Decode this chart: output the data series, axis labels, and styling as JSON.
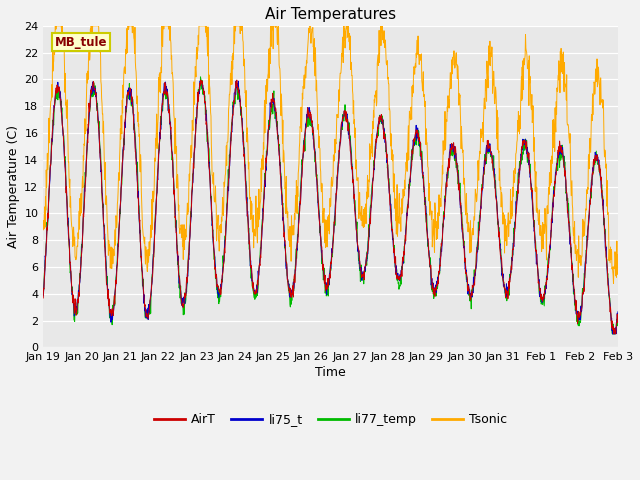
{
  "title": "Air Temperatures",
  "xlabel": "Time",
  "ylabel": "Air Temperature (C)",
  "ylim": [
    0,
    24
  ],
  "yticks": [
    0,
    2,
    4,
    6,
    8,
    10,
    12,
    14,
    16,
    18,
    20,
    22,
    24
  ],
  "xtick_labels": [
    "Jan 19",
    "Jan 20",
    "Jan 21",
    "Jan 22",
    "Jan 23",
    "Jan 24",
    "Jan 25",
    "Jan 26",
    "Jan 27",
    "Jan 28",
    "Jan 29",
    "Jan 30",
    "Jan 31",
    "Feb 1",
    "Feb 2",
    "Feb 3"
  ],
  "colors": {
    "AirT": "#cc0000",
    "li75_t": "#0000cc",
    "li77_temp": "#00bb00",
    "Tsonic": "#ffaa00"
  },
  "plot_bg": "#e8e8e8",
  "fig_bg": "#f2f2f2",
  "grid_color": "#ffffff",
  "annotation_text": "MB_tule",
  "annotation_fg": "#880000",
  "annotation_bg": "#ffffcc",
  "annotation_border": "#cccc00"
}
